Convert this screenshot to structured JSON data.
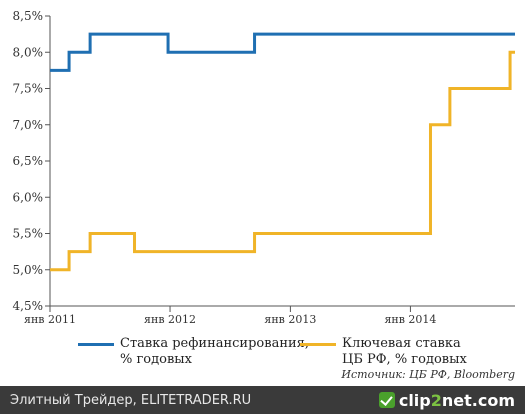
{
  "chart_data": {
    "type": "line",
    "title": "",
    "xlabel": "",
    "ylabel": "",
    "xlim": [
      "2011-01-01",
      "2014-11-15"
    ],
    "ylim": [
      4.5,
      8.5
    ],
    "y_ticks": [
      "4,5%",
      "5,0%",
      "5,5%",
      "6,0%",
      "6,5%",
      "7,0%",
      "7,5%",
      "8,0%",
      "8,5%"
    ],
    "y_tick_values": [
      4.5,
      5.0,
      5.5,
      6.0,
      6.5,
      7.0,
      7.5,
      8.0,
      8.5
    ],
    "x_ticks": [
      {
        "label": "янв 2011",
        "date": "2011-01-01"
      },
      {
        "label": "янв 2012",
        "date": "2012-01-01"
      },
      {
        "label": "янв 2013",
        "date": "2013-01-01"
      },
      {
        "label": "янв 2014",
        "date": "2014-01-01"
      }
    ],
    "grid": false,
    "legend_position": "bottom",
    "series": [
      {
        "name": "Ставка рефинансирования, % годовых",
        "color": "#1f6fb2",
        "step": true,
        "points": [
          {
            "x": "2011-01-01",
            "y": 7.75
          },
          {
            "x": "2011-02-28",
            "y": 8.0
          },
          {
            "x": "2011-05-03",
            "y": 8.25
          },
          {
            "x": "2011-12-26",
            "y": 8.0
          },
          {
            "x": "2012-09-14",
            "y": 8.25
          },
          {
            "x": "2014-11-15",
            "y": 8.25
          }
        ]
      },
      {
        "name": "Ключевая ставка ЦБ РФ, % годовых",
        "color": "#f0b428",
        "step": true,
        "points": [
          {
            "x": "2011-01-01",
            "y": 5.0
          },
          {
            "x": "2011-02-28",
            "y": 5.25
          },
          {
            "x": "2011-05-03",
            "y": 5.5
          },
          {
            "x": "2011-09-15",
            "y": 5.25
          },
          {
            "x": "2012-09-14",
            "y": 5.5
          },
          {
            "x": "2014-03-03",
            "y": 7.0
          },
          {
            "x": "2014-05-01",
            "y": 7.5
          },
          {
            "x": "2014-10-31",
            "y": 8.0
          },
          {
            "x": "2014-11-15",
            "y": 8.0
          }
        ]
      }
    ]
  },
  "legend": {
    "items": [
      {
        "line1": "Ставка рефинансирования,",
        "line2": "% годовых",
        "color": "#1f6fb2"
      },
      {
        "line1": "Ключевая ставка",
        "line2": "ЦБ РФ, % годовых",
        "color": "#f0b428"
      }
    ]
  },
  "source": "Источник: ЦБ РФ, Bloomberg",
  "footer": {
    "text": "Элитный Трейдер, ELITETRADER.RU",
    "brand_left": "clip",
    "brand_mid": "2",
    "brand_right": "net",
    "brand_suffix": ".com"
  }
}
